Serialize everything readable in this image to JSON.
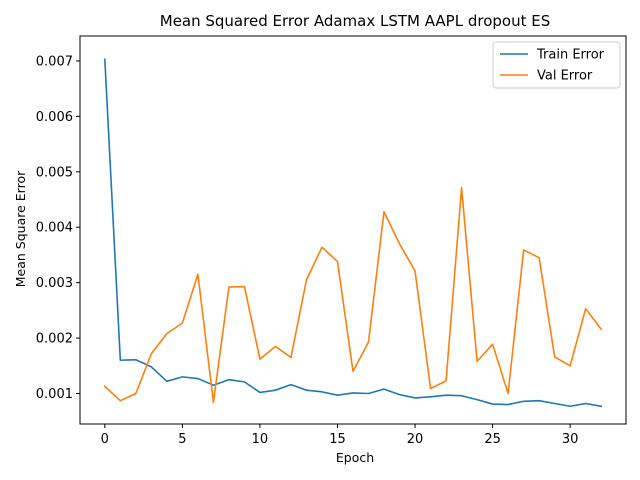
{
  "chart_data": {
    "type": "line",
    "title": "Mean Squared Error  Adamax LSTM AAPL dropout ES",
    "xlabel": "Epoch",
    "ylabel": "Mean Square Error",
    "xlim": [
      -1.6,
      33.6
    ],
    "ylim": [
      0.00045,
      0.00745
    ],
    "xticks": [
      0,
      5,
      10,
      15,
      20,
      25,
      30
    ],
    "yticks": [
      0.001,
      0.002,
      0.003,
      0.004,
      0.005,
      0.006,
      0.007
    ],
    "ytick_labels": [
      "0.001",
      "0.002",
      "0.003",
      "0.004",
      "0.005",
      "0.006",
      "0.007"
    ],
    "grid": false,
    "legend_position": "top-right",
    "x": [
      0,
      1,
      2,
      3,
      4,
      5,
      6,
      7,
      8,
      9,
      10,
      11,
      12,
      13,
      14,
      15,
      16,
      17,
      18,
      19,
      20,
      21,
      22,
      23,
      24,
      25,
      26,
      27,
      28,
      29,
      30,
      31,
      32
    ],
    "series": [
      {
        "name": "Train Error",
        "color": "#1f77b4",
        "values": [
          0.00703,
          0.0016,
          0.00161,
          0.00148,
          0.00122,
          0.0013,
          0.00127,
          0.00115,
          0.00125,
          0.00121,
          0.00102,
          0.00106,
          0.00116,
          0.00106,
          0.00103,
          0.00097,
          0.00101,
          0.001,
          0.00108,
          0.00098,
          0.00092,
          0.00094,
          0.00097,
          0.00096,
          0.00089,
          0.00081,
          0.0008,
          0.00086,
          0.00087,
          0.00082,
          0.00077,
          0.00082,
          0.00077
        ]
      },
      {
        "name": "Val Error",
        "color": "#ff7f0e",
        "values": [
          0.00113,
          0.00087,
          0.001,
          0.00172,
          0.00208,
          0.00227,
          0.00315,
          0.00084,
          0.00292,
          0.00293,
          0.00162,
          0.00185,
          0.00165,
          0.00305,
          0.00364,
          0.00338,
          0.0014,
          0.00193,
          0.00428,
          0.0037,
          0.00321,
          0.00109,
          0.00123,
          0.00471,
          0.00158,
          0.00189,
          0.001,
          0.00359,
          0.00345,
          0.00166,
          0.0015,
          0.00253,
          0.00216
        ]
      }
    ]
  }
}
